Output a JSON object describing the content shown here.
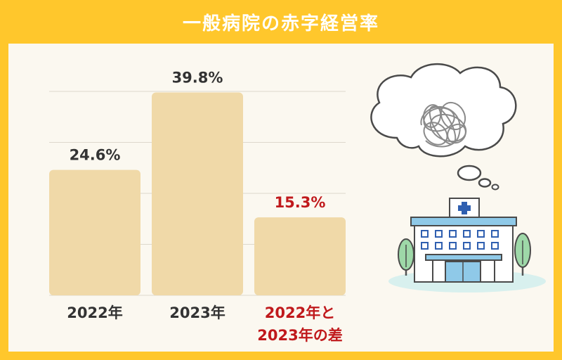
{
  "title": "一般病院の赤字経営率",
  "colors": {
    "frame": "#ffc72c",
    "panel": "#fbf8f0",
    "bar": "#f0d9a8",
    "text": "#333333",
    "highlight": "#c0191c",
    "grid": "#ddd8cc"
  },
  "chart_data": {
    "type": "bar",
    "categories": [
      "2022年",
      "2023年",
      "2022年と\n2023年の差"
    ],
    "values": [
      24.6,
      39.8,
      15.3
    ],
    "data_labels": [
      "24.6%",
      "39.8%",
      "15.3%"
    ],
    "highlight_index": 2,
    "ylim": [
      0,
      40
    ],
    "grid": true,
    "title": "",
    "xlabel": "",
    "ylabel": ""
  },
  "illustration": {
    "icons": [
      "thought-cloud-icon",
      "tangled-scribble-icon",
      "hospital-building-icon",
      "tree-icon",
      "cross-icon"
    ]
  }
}
